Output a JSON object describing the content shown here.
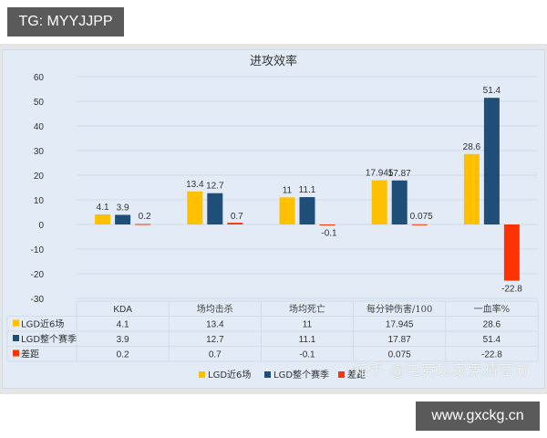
{
  "tags": {
    "top": "TG: MYYJJPP",
    "bottom": "www.gxckg.cn"
  },
  "watermark": "知乎 @电竞玩家竞猜官方",
  "chart_data": {
    "type": "bar",
    "title": "进攻效率",
    "categories": [
      "KDA",
      "场均击杀",
      "场均死亡",
      "每分钟伤害/100",
      "一血率%"
    ],
    "series": [
      {
        "name": "LGD近6场",
        "color": "#ffc000",
        "values": [
          4.1,
          13.4,
          11,
          17.945,
          28.6
        ],
        "labels": [
          "4.1",
          "13.4",
          "11",
          "17.945",
          "28.6"
        ]
      },
      {
        "name": "LGD整个赛季",
        "color": "#1f4e79",
        "values": [
          3.9,
          12.7,
          11.1,
          17.87,
          51.4
        ],
        "labels": [
          "3.9",
          "12.7",
          "11.1",
          "17.87",
          "51.4"
        ]
      },
      {
        "name": "差距",
        "color": "#ff3300",
        "values": [
          0.2,
          0.7,
          -0.1,
          0.075,
          -22.8
        ],
        "labels": [
          "0.2",
          "0.7",
          "-0.1",
          "0.075",
          "-22.8"
        ]
      }
    ],
    "xlabel": "",
    "ylabel": "",
    "ylim": [
      -30,
      60
    ],
    "yticks": [
      60,
      50,
      40,
      30,
      20,
      10,
      0,
      -10,
      -20,
      -30
    ],
    "grid": true,
    "legend_position": "bottom",
    "data_table": true
  }
}
